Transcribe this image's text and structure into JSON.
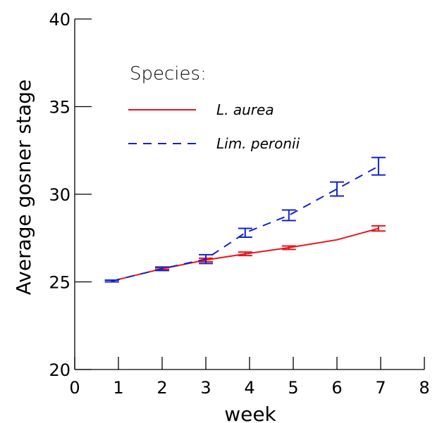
{
  "chart_data": {
    "type": "line",
    "xlabel": "week",
    "ylabel": "Average gosner stage",
    "xlim": [
      0,
      8
    ],
    "ylim": [
      20,
      40
    ],
    "xticks": [
      0,
      1,
      2,
      3,
      4,
      5,
      6,
      7,
      8
    ],
    "yticks": [
      20,
      25,
      30,
      35,
      40
    ],
    "grid": false,
    "legend": {
      "title": "Species:",
      "position": "top-left",
      "entries": [
        "L. aurea",
        "Lim. peronii"
      ]
    },
    "series": [
      {
        "name": "L. aurea",
        "color": "#e8141e",
        "line_style": "solid",
        "points": [
          {
            "x": 0.85,
            "y": 25.05,
            "err": 0.05
          },
          {
            "x": 2.0,
            "y": 25.75,
            "err": 0.05
          },
          {
            "x": 3.0,
            "y": 26.25,
            "err": 0.1
          },
          {
            "x": 3.9,
            "y": 26.6,
            "err": 0.1
          },
          {
            "x": 4.9,
            "y": 26.95,
            "err": 0.1
          },
          {
            "x": 6.0,
            "y": 27.4,
            "err": 0.0
          },
          {
            "x": 6.95,
            "y": 28.05,
            "err": 0.15
          }
        ]
      },
      {
        "name": "Lim. peronii",
        "color": "#1423c8",
        "line_style": "dashed",
        "points": [
          {
            "x": 0.85,
            "y": 25.05,
            "err": 0.05
          },
          {
            "x": 2.0,
            "y": 25.75,
            "err": 0.1
          },
          {
            "x": 3.0,
            "y": 26.3,
            "err": 0.25
          },
          {
            "x": 3.9,
            "y": 27.8,
            "err": 0.25
          },
          {
            "x": 4.9,
            "y": 28.8,
            "err": 0.3
          },
          {
            "x": 6.0,
            "y": 30.3,
            "err": 0.4
          },
          {
            "x": 6.95,
            "y": 31.6,
            "err": 0.5
          }
        ]
      }
    ]
  }
}
